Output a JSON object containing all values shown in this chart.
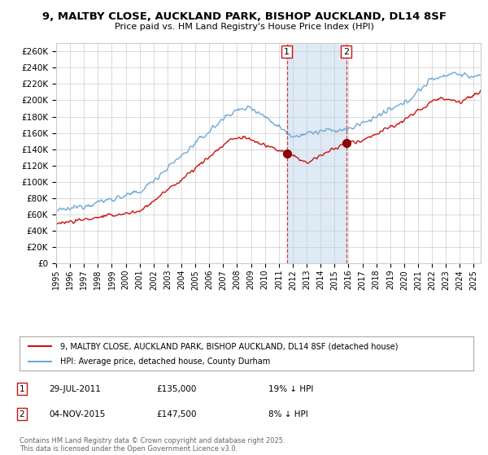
{
  "title": "9, MALTBY CLOSE, AUCKLAND PARK, BISHOP AUCKLAND, DL14 8SF",
  "subtitle": "Price paid vs. HM Land Registry's House Price Index (HPI)",
  "ylabel_ticks": [
    "£0",
    "£20K",
    "£40K",
    "£60K",
    "£80K",
    "£100K",
    "£120K",
    "£140K",
    "£160K",
    "£180K",
    "£200K",
    "£220K",
    "£240K",
    "£260K"
  ],
  "ytick_values": [
    0,
    20000,
    40000,
    60000,
    80000,
    100000,
    120000,
    140000,
    160000,
    180000,
    200000,
    220000,
    240000,
    260000
  ],
  "ylim": [
    0,
    270000
  ],
  "hpi_color": "#6fa8d8",
  "price_color": "#cc1111",
  "background_color": "#ffffff",
  "grid_color": "#cccccc",
  "shaded_region_color": "#deeaf5",
  "transaction1": {
    "date_num": 2011.57,
    "price": 135000,
    "label": "1",
    "date_str": "29-JUL-2011",
    "pct": "19%"
  },
  "transaction2": {
    "date_num": 2015.84,
    "price": 147500,
    "label": "2",
    "date_str": "04-NOV-2015",
    "pct": "8%"
  },
  "legend_price_label": "9, MALTBY CLOSE, AUCKLAND PARK, BISHOP AUCKLAND, DL14 8SF (detached house)",
  "legend_hpi_label": "HPI: Average price, detached house, County Durham",
  "footer": "Contains HM Land Registry data © Crown copyright and database right 2025.\nThis data is licensed under the Open Government Licence v3.0.",
  "xmin": 1995,
  "xmax": 2025.5
}
